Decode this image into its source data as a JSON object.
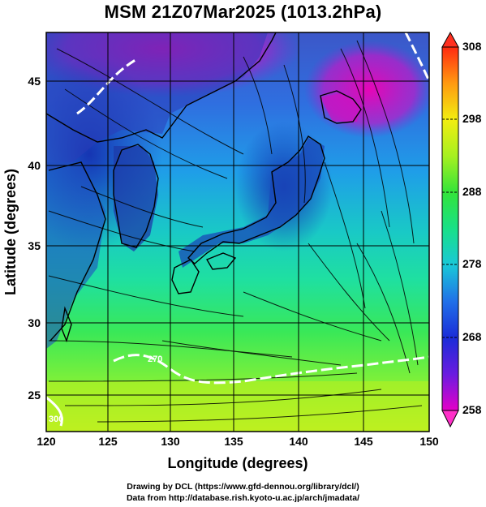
{
  "title": "MSM 21Z07Mar2025 (1013.2hPa)",
  "xlabel": "Longitude (degrees)",
  "ylabel": "Latitude  (degrees)",
  "x_ticks": [
    "120",
    "125",
    "130",
    "135",
    "140",
    "145",
    "150"
  ],
  "y_ticks": [
    "25",
    "30",
    "35",
    "40",
    "45"
  ],
  "colorbar_ticks": [
    "308",
    "298",
    "288",
    "278",
    "268",
    "258"
  ],
  "contour_labels": [
    "270",
    "300"
  ],
  "credits": {
    "line1": "Drawing by DCL (https://www.gfd-dennou.org/library/dcl/)",
    "line2": "Data from http://database.rish.kyoto-u.ac.jp/arch/jmadata/"
  },
  "chart_data": {
    "type": "heatmap",
    "title": "MSM 21Z07Mar2025 (1013.2hPa)",
    "xlabel": "Longitude (degrees)",
    "ylabel": "Latitude  (degrees)",
    "xlim": [
      120,
      150
    ],
    "ylim": [
      22.4,
      47.6
    ],
    "colorbar_range": [
      258,
      308
    ],
    "colorbar_ticks": [
      258,
      268,
      278,
      288,
      298,
      308
    ],
    "contours": [
      270,
      300
    ],
    "grid": true
  }
}
